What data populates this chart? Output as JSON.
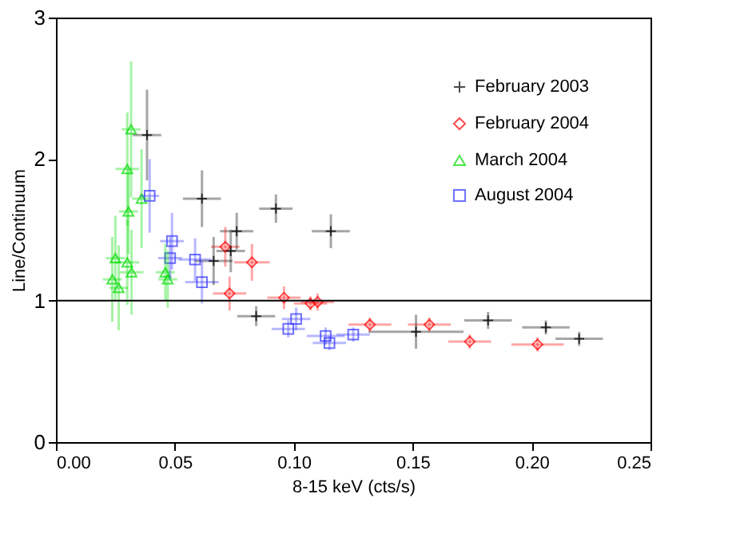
{
  "chart_data": {
    "type": "scatter",
    "xlabel": "8-15 keV (cts/s)",
    "ylabel": "Line/Continuum",
    "xlim": [
      0,
      0.25
    ],
    "ylim": [
      0,
      3
    ],
    "xticks": [
      {
        "value": 0,
        "label": "0.00"
      },
      {
        "value": 0.05,
        "label": "0.05"
      },
      {
        "value": 0.1,
        "label": "0.10"
      },
      {
        "value": 0.15,
        "label": "0.15"
      },
      {
        "value": 0.2,
        "label": "0.20"
      },
      {
        "value": 0.25,
        "label": "0.25"
      }
    ],
    "yticks": [
      0,
      1,
      2,
      3
    ],
    "grid": false,
    "legend": "top right",
    "ref_lines": [
      {
        "axis": "y",
        "value": 1,
        "color": "#000000"
      }
    ],
    "series": [
      {
        "name": "February 2003",
        "color": "#000000",
        "marker": "cross",
        "x": [
          0.0383,
          0.0614,
          0.0925,
          0.1156,
          0.076,
          0.0663,
          0.0735,
          0.0842,
          0.1514,
          0.1817,
          0.206,
          0.22
        ],
        "values": [
          2.17,
          1.72,
          1.65,
          1.49,
          1.49,
          1.28,
          1.35,
          0.89,
          0.78,
          0.86,
          0.81,
          0.73
        ],
        "xerrors": [
          0.006,
          0.008,
          0.007,
          0.008,
          0.007,
          0.008,
          0.006,
          0.008,
          0.02,
          0.01,
          0.01,
          0.01
        ],
        "errors": [
          0.32,
          0.2,
          0.1,
          0.12,
          0.13,
          0.17,
          0.15,
          0.07,
          0.12,
          0.06,
          0.05,
          0.05
        ]
      },
      {
        "name": "February 2004",
        "color": "#ff0000",
        "marker": "diamond",
        "x": [
          0.0712,
          0.0824,
          0.073,
          0.0959,
          0.107,
          0.11,
          0.132,
          0.157,
          0.174,
          0.2025
        ],
        "values": [
          1.38,
          1.27,
          1.05,
          1.02,
          0.98,
          0.99,
          0.83,
          0.83,
          0.71,
          0.69
        ],
        "xerrors": [
          0.006,
          0.0075,
          0.007,
          0.007,
          0.007,
          0.007,
          0.009,
          0.009,
          0.009,
          0.011
        ],
        "errors": [
          0.14,
          0.13,
          0.12,
          0.08,
          0.05,
          0.06,
          0.05,
          0.05,
          0.05,
          0.05
        ]
      },
      {
        "name": "March 2004",
        "color": "#00dd00",
        "marker": "triangle",
        "x": [
          0.0316,
          0.03,
          0.0305,
          0.036,
          0.025,
          0.03,
          0.0237,
          0.0264,
          0.0318,
          0.046,
          0.047
        ],
        "values": [
          2.21,
          1.93,
          1.63,
          1.72,
          1.3,
          1.27,
          1.15,
          1.09,
          1.2,
          1.2,
          1.15
        ],
        "xerrors": [
          0.004,
          0.005,
          0.004,
          0.004,
          0.004,
          0.005,
          0.004,
          0.004,
          0.005,
          0.004,
          0.004
        ],
        "errors": [
          0.48,
          0.4,
          0.3,
          0.35,
          0.3,
          0.3,
          0.3,
          0.3,
          0.3,
          0.2,
          0.2
        ]
      },
      {
        "name": "August 2004",
        "color": "#3333ff",
        "marker": "square",
        "x": [
          0.0394,
          0.0488,
          0.048,
          0.0585,
          0.0614,
          0.101,
          0.0977,
          0.1134,
          0.115,
          0.125
        ],
        "values": [
          1.74,
          1.42,
          1.3,
          1.29,
          1.13,
          0.87,
          0.8,
          0.75,
          0.7,
          0.76
        ],
        "xerrors": [
          0.004,
          0.005,
          0.005,
          0.007,
          0.007,
          0.006,
          0.007,
          0.008,
          0.007,
          0.007
        ],
        "errors": [
          0.26,
          0.2,
          0.15,
          0.15,
          0.15,
          0.08,
          0.06,
          0.06,
          0.05,
          0.05
        ]
      }
    ]
  }
}
